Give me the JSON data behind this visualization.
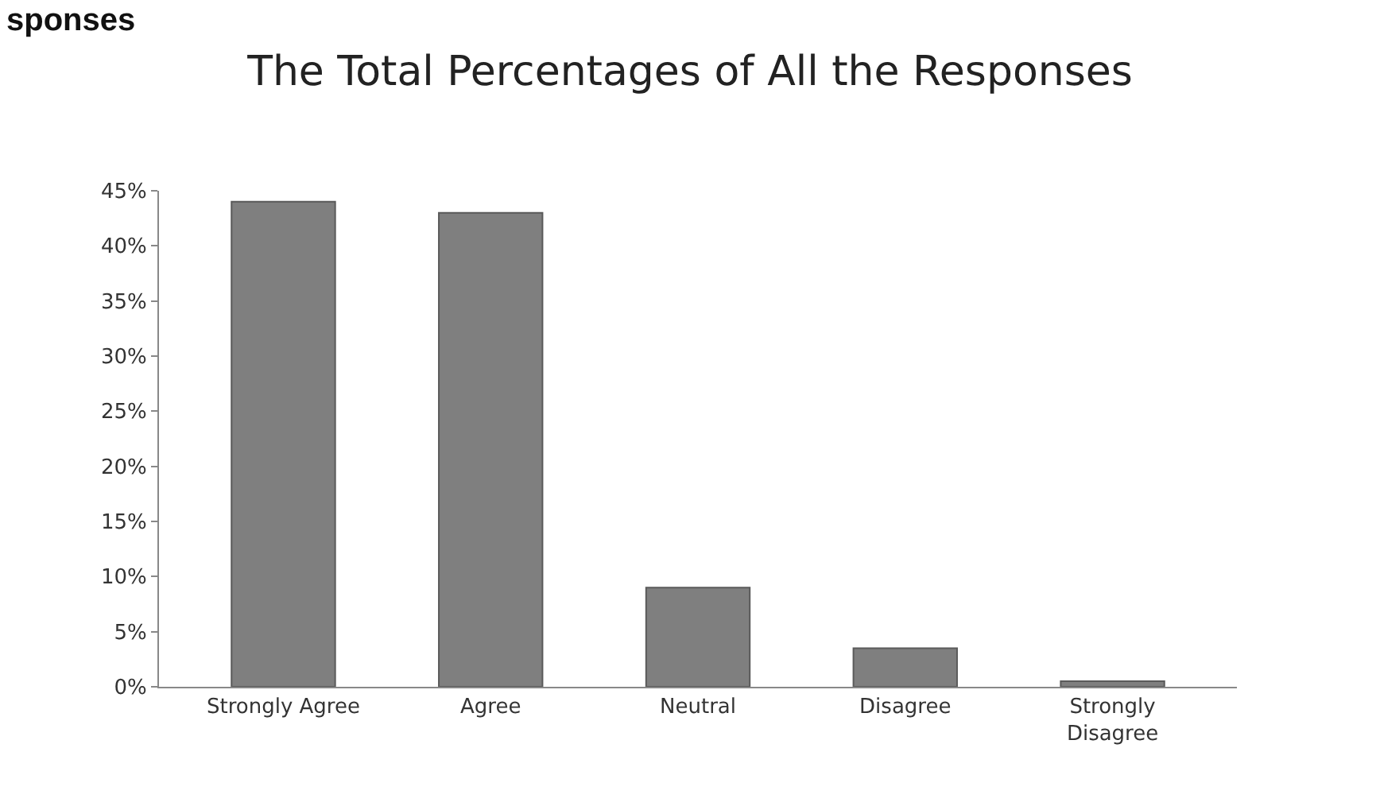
{
  "chart_data": {
    "type": "bar",
    "title": "The Total Percentages of All the Responses",
    "categories": [
      "Strongly Agree",
      "Agree",
      "Neutral",
      "Disagree",
      "Strongly Disagree"
    ],
    "values": [
      44,
      43,
      9,
      3.5,
      0.5
    ],
    "color": "#7f7f7f",
    "ylim": [
      0,
      45
    ],
    "yticks": [
      {
        "value": 0,
        "label": "0%"
      },
      {
        "value": 5,
        "label": "5%"
      },
      {
        "value": 10,
        "label": "10%"
      },
      {
        "value": 15,
        "label": "15%"
      },
      {
        "value": 20,
        "label": "20%"
      },
      {
        "value": 25,
        "label": "25%"
      },
      {
        "value": 30,
        "label": "30%"
      },
      {
        "value": 35,
        "label": "35%"
      },
      {
        "value": 40,
        "label": "40%"
      },
      {
        "value": 45,
        "label": "45%"
      }
    ],
    "grid": false,
    "annotations": [
      "sponses"
    ]
  }
}
